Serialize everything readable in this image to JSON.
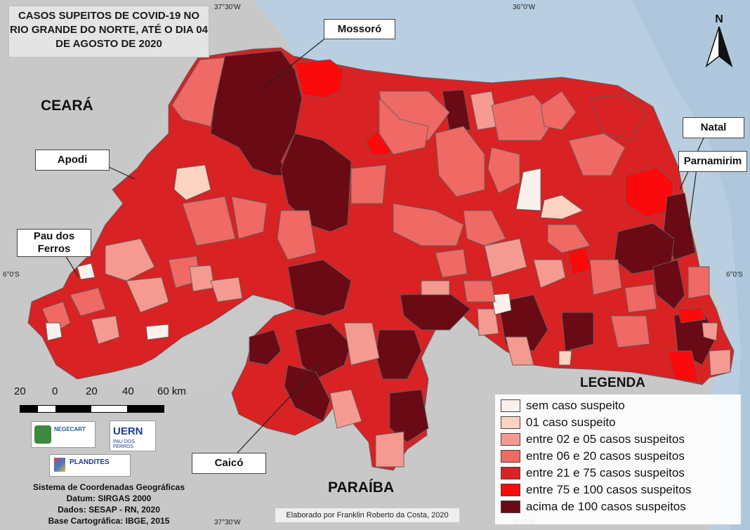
{
  "title": {
    "lines": [
      "CASOS SUPEITOS DE COVID-19 NO",
      "RIO GRANDE DO NORTE, ATÉ O DIA 04",
      "DE AGOSTO DE 2020"
    ]
  },
  "regions": {
    "ceara": "CEARÁ",
    "paraiba": "PARAÍBA"
  },
  "callouts": {
    "mossoro": "Mossoró",
    "apodi": "Apodi",
    "pau_dos_ferros_1": "Pau dos",
    "pau_dos_ferros_2": "Ferros",
    "natal": "Natal",
    "parnamirim": "Parnamirim",
    "caico": "Caicó"
  },
  "coordinates": {
    "top_left": "37°30'W",
    "top_right": "36°0'W",
    "bottom_left": "37°30'W",
    "bottom_right": "36°0'W",
    "left_lat": "6°0'S",
    "right_lat": "6°0'S"
  },
  "north_arrow": {
    "letter": "N",
    "icon": "north-arrow-icon"
  },
  "scale": {
    "labels": [
      "20",
      "0",
      "20",
      "40",
      "60 km"
    ]
  },
  "logos": {
    "negecart": "NEGECART",
    "uern_1": "UERN",
    "uern_2": "PAU DOS FERROS",
    "plandites": "PLANDITES"
  },
  "credits": {
    "line1": "Sistema de Coordenadas Geográficas",
    "line2": "Datum: SIRGAS 2000",
    "line3": "Dados: SESAP - RN, 2020",
    "line4": "Base Cartográfica: IBGE, 2015"
  },
  "elaborated_by": "Elaborado por Franklin Roberto da Costa, 2020",
  "legend": {
    "title": "LEGENDA",
    "items": [
      {
        "label": "sem caso suspeito",
        "color": "#fbf1ec"
      },
      {
        "label": "01 caso suspeito",
        "color": "#fcd3c0"
      },
      {
        "label": "entre 02 e 05 casos suspeitos",
        "color": "#f59a90"
      },
      {
        "label": "entre 06 e 20 casos suspeitos",
        "color": "#ef6a64"
      },
      {
        "label": "entre 21 e 75 casos suspeitos",
        "color": "#d82224"
      },
      {
        "label": "entre 75 e 100 casos suspeitos",
        "color": "#fb0a0c"
      },
      {
        "label": "acima de 100 casos suspeitos",
        "color": "#690a14"
      }
    ]
  },
  "colors": {
    "ocean": "#b8cfe0",
    "land_outside": "#c9c9c9",
    "border": "#555555"
  }
}
